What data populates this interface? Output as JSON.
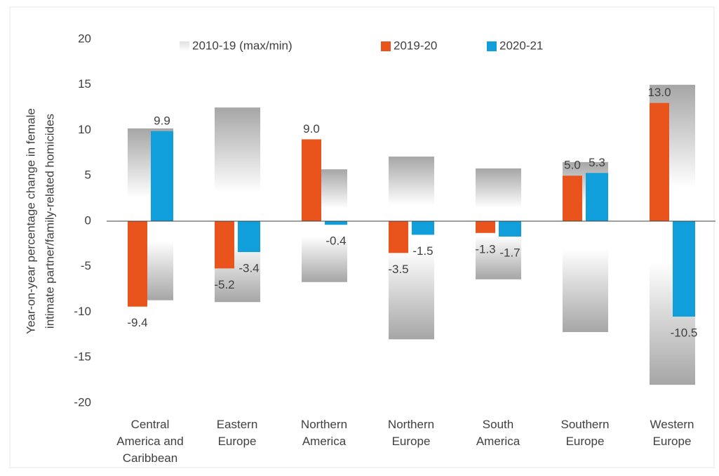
{
  "chart_data": {
    "type": "bar",
    "y_label": [
      "Year-on-year percentage change in female",
      "intimate partner/family-related homicides"
    ],
    "categories": [
      [
        "Central",
        "America and",
        "Caribbean"
      ],
      [
        "Eastern",
        "Europe"
      ],
      [
        "Northern",
        "America"
      ],
      [
        "Northern",
        "Europe"
      ],
      [
        "South",
        "America"
      ],
      [
        "Southern",
        "Europe"
      ],
      [
        "Western",
        "Europe"
      ]
    ],
    "range_series": {
      "name": "2010-19 (max/min)",
      "color": "#a6a6a6",
      "max": [
        10.2,
        12.5,
        5.7,
        7.1,
        5.8,
        6.5,
        15.0
      ],
      "min": [
        -8.7,
        -8.9,
        -6.7,
        -13.0,
        -6.4,
        -12.2,
        -18.0
      ]
    },
    "series": [
      {
        "name": "2019-20",
        "color": "#e8541c",
        "values": [
          -9.4,
          -5.2,
          9.0,
          -3.5,
          -1.3,
          5.0,
          13.0
        ],
        "value_labels": [
          "-9.4",
          "-5.2",
          "9.0",
          "-3.5",
          "-1.3",
          "5.0",
          "13.0"
        ]
      },
      {
        "name": "2020-21",
        "color": "#119fdc",
        "values": [
          9.9,
          -3.4,
          -0.4,
          -1.5,
          -1.7,
          5.3,
          -10.5
        ],
        "value_labels": [
          "9.9",
          "-3.4",
          "-0.4",
          "-1.5",
          "-1.7",
          "5.3",
          "-10.5"
        ]
      }
    ],
    "ylim": [
      -20,
      20
    ],
    "yticks": [
      -20,
      -15,
      -10,
      -5,
      0,
      5,
      10,
      15,
      20
    ]
  }
}
